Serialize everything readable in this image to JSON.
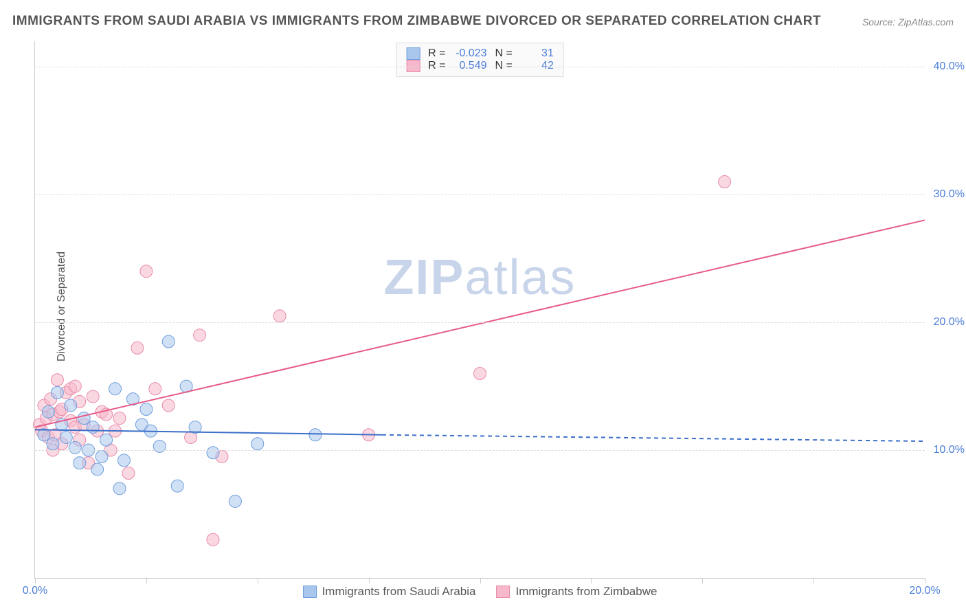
{
  "title": "IMMIGRANTS FROM SAUDI ARABIA VS IMMIGRANTS FROM ZIMBABWE DIVORCED OR SEPARATED CORRELATION CHART",
  "source_label": "Source:",
  "source_value": "ZipAtlas.com",
  "ylabel": "Divorced or Separated",
  "watermark_a": "ZIP",
  "watermark_b": "atlas",
  "chart": {
    "type": "scatter",
    "xlim": [
      0,
      20
    ],
    "ylim": [
      0,
      42
    ],
    "xticks": [
      0,
      2.5,
      5,
      7.5,
      10,
      12.5,
      15,
      17.5,
      20
    ],
    "xtick_labels": {
      "0": "0.0%",
      "20": "20.0%"
    },
    "yticks": [
      10,
      20,
      30,
      40
    ],
    "ytick_labels": {
      "10": "10.0%",
      "20": "20.0%",
      "30": "30.0%",
      "40": "40.0%"
    },
    "background_color": "#ffffff",
    "grid_color": "#dddddd",
    "axis_color": "#cccccc",
    "tick_label_color": "#4a7dd8",
    "label_color": "#555555",
    "title_color": "#555555",
    "title_fontsize": 19,
    "label_fontsize": 16,
    "marker_radius": 9,
    "marker_opacity": 0.55,
    "line_width": 2
  },
  "series": {
    "a": {
      "label": "Immigrants from Saudi Arabia",
      "color_fill": "#a9c7ec",
      "color_stroke": "#6f9edd",
      "r_label": "R =",
      "r_value": "-0.023",
      "n_label": "N =",
      "n_value": "31",
      "points": [
        [
          0.2,
          11.2
        ],
        [
          0.3,
          13.0
        ],
        [
          0.4,
          10.5
        ],
        [
          0.5,
          14.5
        ],
        [
          0.6,
          12.0
        ],
        [
          0.7,
          11.0
        ],
        [
          0.8,
          13.5
        ],
        [
          0.9,
          10.2
        ],
        [
          1.0,
          9.0
        ],
        [
          1.1,
          12.5
        ],
        [
          1.2,
          10.0
        ],
        [
          1.3,
          11.8
        ],
        [
          1.5,
          9.5
        ],
        [
          1.6,
          10.8
        ],
        [
          1.8,
          14.8
        ],
        [
          1.9,
          7.0
        ],
        [
          2.0,
          9.2
        ],
        [
          2.2,
          14.0
        ],
        [
          2.4,
          12.0
        ],
        [
          2.6,
          11.5
        ],
        [
          2.8,
          10.3
        ],
        [
          3.0,
          18.5
        ],
        [
          3.2,
          7.2
        ],
        [
          3.4,
          15.0
        ],
        [
          3.6,
          11.8
        ],
        [
          4.0,
          9.8
        ],
        [
          4.5,
          6.0
        ],
        [
          5.0,
          10.5
        ],
        [
          6.3,
          11.2
        ],
        [
          2.5,
          13.2
        ],
        [
          1.4,
          8.5
        ]
      ],
      "trend": {
        "x1": 0,
        "y1": 11.6,
        "x2": 7.8,
        "y2": 11.2,
        "dashed_x2": 20,
        "dashed_y2": 10.7
      }
    },
    "b": {
      "label": "Immigrants from Zimbabwe",
      "color_fill": "#f6b8ca",
      "color_stroke": "#e88aa8",
      "r_label": "R =",
      "r_value": "0.549",
      "n_label": "N =",
      "n_value": "42",
      "points": [
        [
          0.1,
          12.0
        ],
        [
          0.15,
          11.5
        ],
        [
          0.2,
          13.5
        ],
        [
          0.25,
          12.5
        ],
        [
          0.3,
          11.0
        ],
        [
          0.35,
          14.0
        ],
        [
          0.4,
          12.8
        ],
        [
          0.45,
          11.2
        ],
        [
          0.5,
          15.5
        ],
        [
          0.55,
          13.0
        ],
        [
          0.6,
          10.5
        ],
        [
          0.7,
          14.5
        ],
        [
          0.8,
          12.3
        ],
        [
          0.9,
          11.8
        ],
        [
          1.0,
          13.8
        ],
        [
          1.1,
          12.0
        ],
        [
          1.2,
          9.0
        ],
        [
          1.3,
          14.2
        ],
        [
          1.4,
          11.5
        ],
        [
          1.5,
          13.0
        ],
        [
          1.7,
          10.0
        ],
        [
          1.9,
          12.5
        ],
        [
          2.1,
          8.2
        ],
        [
          2.3,
          18.0
        ],
        [
          2.5,
          24.0
        ],
        [
          2.7,
          14.8
        ],
        [
          3.0,
          13.5
        ],
        [
          3.5,
          11.0
        ],
        [
          3.7,
          19.0
        ],
        [
          4.0,
          3.0
        ],
        [
          4.2,
          9.5
        ],
        [
          5.5,
          20.5
        ],
        [
          7.5,
          11.2
        ],
        [
          10.0,
          16.0
        ],
        [
          15.5,
          31.0
        ],
        [
          0.6,
          13.2
        ],
        [
          0.8,
          14.8
        ],
        [
          1.0,
          10.8
        ],
        [
          1.6,
          12.8
        ],
        [
          0.4,
          10.0
        ],
        [
          0.9,
          15.0
        ],
        [
          1.8,
          11.5
        ]
      ],
      "trend": {
        "x1": 0,
        "y1": 11.8,
        "x2": 20,
        "y2": 28.0
      }
    }
  }
}
